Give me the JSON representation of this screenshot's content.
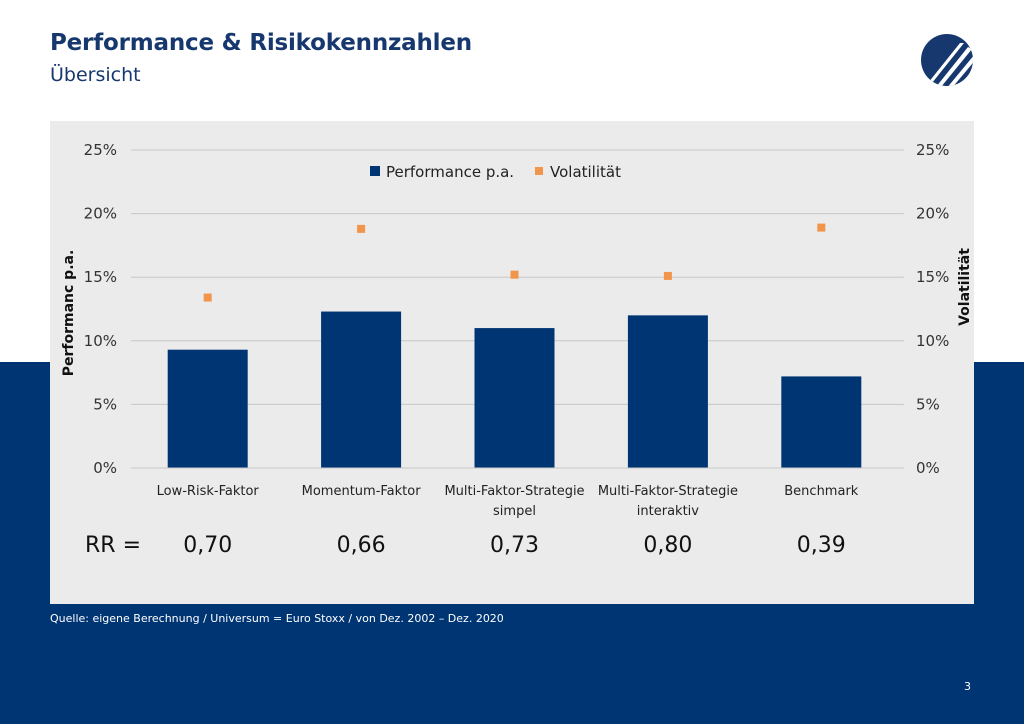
{
  "header": {
    "title": "Performance & Risikokennzahlen",
    "subtitle": "Übersicht"
  },
  "logo": {
    "icon": "company-logo-icon",
    "color": "#17386e"
  },
  "colors": {
    "bar": "#003574",
    "marker": "#f0954a",
    "band": "#003574",
    "panel": "#ebebeb"
  },
  "chart_data": {
    "type": "bar",
    "categories": [
      [
        "Low-Risk-Faktor"
      ],
      [
        "Momentum-Faktor"
      ],
      [
        "Multi-Faktor-Strategie",
        "simpel"
      ],
      [
        "Multi-Faktor-Strategie",
        "interaktiv"
      ],
      [
        "Benchmark"
      ]
    ],
    "series": [
      {
        "name": "Performance p.a.",
        "kind": "bar",
        "axis": "left",
        "values": [
          9.3,
          12.3,
          11.0,
          12.0,
          7.2
        ]
      },
      {
        "name": "Volatilität",
        "kind": "scatter",
        "axis": "right",
        "values": [
          13.4,
          18.8,
          15.2,
          15.1,
          18.9
        ]
      }
    ],
    "ylabel_left": "Performanc p.a.",
    "ylabel_right": "Volatilität",
    "ylim": [
      0,
      25
    ],
    "yticks": [
      "0%",
      "5%",
      "10%",
      "15%",
      "20%",
      "25%"
    ],
    "grid": true,
    "legend_position": "top-center",
    "rr_label": "RR =",
    "rr_values": [
      "0,70",
      "0,66",
      "0,73",
      "0,80",
      "0,39"
    ]
  },
  "footer": {
    "source": "Quelle: eigene Berechnung  / Universum = Euro Stoxx / von Dez. 2002 – Dez. 2020",
    "page_number": "3"
  }
}
